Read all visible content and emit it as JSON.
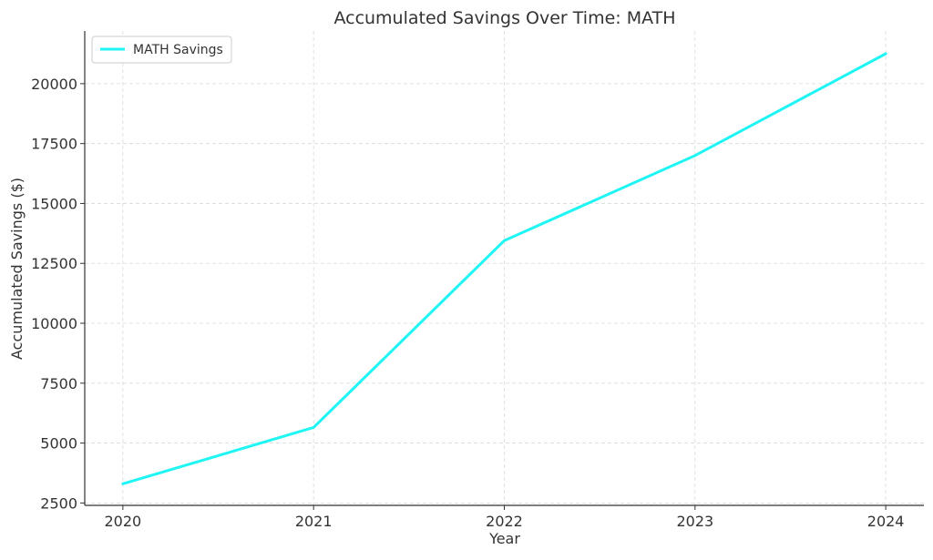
{
  "chart_data": {
    "type": "line",
    "title": "Accumulated Savings Over Time: MATH",
    "xlabel": "Year",
    "ylabel": "Accumulated Savings ($)",
    "x": [
      2020,
      2021,
      2022,
      2023,
      2024
    ],
    "x_tick_labels": [
      "2020",
      "2021",
      "2022",
      "2023",
      "2024"
    ],
    "y_ticks": [
      2500,
      5000,
      7500,
      10000,
      12500,
      15000,
      17500,
      20000
    ],
    "y_tick_labels": [
      "2500",
      "5000",
      "7500",
      "10000",
      "12500",
      "15000",
      "17500",
      "20000"
    ],
    "xlim": [
      2019.8,
      2024.2
    ],
    "ylim": [
      2400,
      22200
    ],
    "grid": true,
    "legend_position": "top-left",
    "series": [
      {
        "name": "MATH Savings",
        "color": "#1ff5f5",
        "values": [
          3300,
          5650,
          13450,
          17000,
          21250
        ]
      }
    ]
  }
}
